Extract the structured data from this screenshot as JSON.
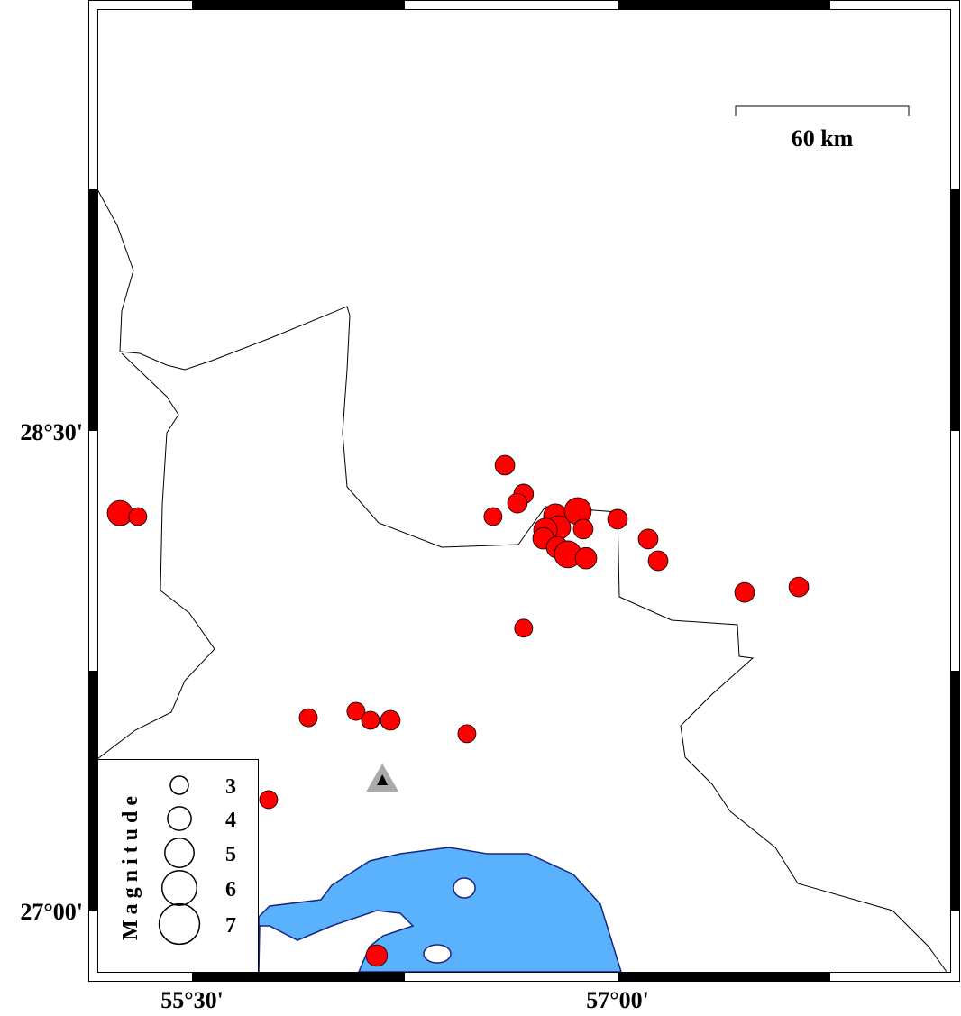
{
  "map": {
    "extent": {
      "lon_min": 55.1667,
      "lon_max": 58.1667,
      "lat_min": 26.8,
      "lat_max": 29.8
    },
    "x_ticks": [
      {
        "value": 55.5,
        "label": "55°30'"
      },
      {
        "value": 57.0,
        "label": "57°00'"
      }
    ],
    "y_ticks": [
      {
        "value": 28.5,
        "label": "28°30'"
      },
      {
        "value": 27.0,
        "label": "27°00'"
      }
    ],
    "scale_bar": {
      "label": "60 km"
    },
    "colors": {
      "sea": "#5ab1fc",
      "coast": "#1a237e",
      "event": "#ff0000",
      "station": "#aaaaaa",
      "border": "#000000"
    },
    "station": {
      "icon": "triangle-station-icon",
      "lon": 56.171,
      "lat": 27.406
    },
    "events": [
      {
        "lon": 55.246,
        "lat": 28.243,
        "mag": 4.3
      },
      {
        "lon": 55.309,
        "lat": 28.232,
        "mag": 3.0
      },
      {
        "lon": 56.603,
        "lat": 28.393,
        "mag": 3.3
      },
      {
        "lon": 56.669,
        "lat": 28.303,
        "mag": 3.3
      },
      {
        "lon": 56.647,
        "lat": 28.274,
        "mag": 3.3
      },
      {
        "lon": 56.561,
        "lat": 28.232,
        "mag": 3.0
      },
      {
        "lon": 56.781,
        "lat": 28.235,
        "mag": 4.0
      },
      {
        "lon": 56.86,
        "lat": 28.249,
        "mag": 4.6
      },
      {
        "lon": 56.879,
        "lat": 28.193,
        "mag": 3.3
      },
      {
        "lon": 56.793,
        "lat": 28.198,
        "mag": 4.0
      },
      {
        "lon": 56.746,
        "lat": 28.19,
        "mag": 4.0
      },
      {
        "lon": 56.739,
        "lat": 28.164,
        "mag": 3.6
      },
      {
        "lon": 56.787,
        "lat": 28.136,
        "mag": 3.6
      },
      {
        "lon": 56.825,
        "lat": 28.114,
        "mag": 4.6
      },
      {
        "lon": 56.889,
        "lat": 28.102,
        "mag": 3.6
      },
      {
        "lon": 57.0,
        "lat": 28.224,
        "mag": 3.3
      },
      {
        "lon": 57.108,
        "lat": 28.162,
        "mag": 3.3
      },
      {
        "lon": 57.143,
        "lat": 28.094,
        "mag": 3.3
      },
      {
        "lon": 57.448,
        "lat": 27.995,
        "mag": 3.3
      },
      {
        "lon": 57.639,
        "lat": 28.012,
        "mag": 3.3
      },
      {
        "lon": 56.669,
        "lat": 27.883,
        "mag": 3.0
      },
      {
        "lon": 55.91,
        "lat": 27.603,
        "mag": 3.0
      },
      {
        "lon": 56.078,
        "lat": 27.623,
        "mag": 3.0
      },
      {
        "lon": 56.129,
        "lat": 27.595,
        "mag": 3.0
      },
      {
        "lon": 56.199,
        "lat": 27.595,
        "mag": 3.3
      },
      {
        "lon": 56.469,
        "lat": 27.553,
        "mag": 3.0
      },
      {
        "lon": 55.77,
        "lat": 27.347,
        "mag": 3.0
      },
      {
        "lon": 56.151,
        "lat": 26.859,
        "mag": 3.6
      }
    ]
  },
  "legend": {
    "title": "Magnitude",
    "items": [
      {
        "mag": 3,
        "label": "3"
      },
      {
        "mag": 4,
        "label": "4"
      },
      {
        "mag": 5,
        "label": "5"
      },
      {
        "mag": 6,
        "label": "6"
      },
      {
        "mag": 7,
        "label": "7"
      }
    ]
  }
}
